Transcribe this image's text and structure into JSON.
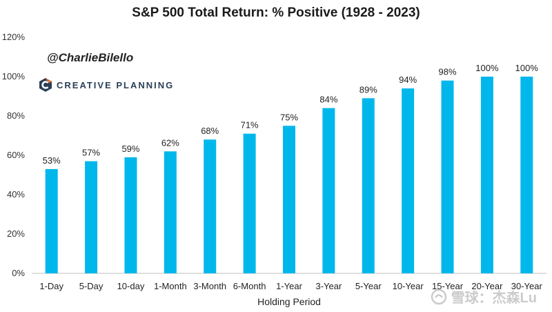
{
  "chart_data": {
    "type": "bar",
    "title": "S&P 500 Total Return: % Positive (1928 - 2023)",
    "xlabel": "Holding Period",
    "ylabel": "",
    "categories": [
      "1-Day",
      "5-Day",
      "10-day",
      "1-Month",
      "3-Month",
      "6-Month",
      "1-Year",
      "3-Year",
      "5-Year",
      "10-Year",
      "15-Year",
      "20-Year",
      "30-Year"
    ],
    "values": [
      53,
      57,
      59,
      62,
      68,
      71,
      75,
      84,
      89,
      94,
      98,
      100,
      100
    ],
    "data_labels": [
      "53%",
      "57%",
      "59%",
      "62%",
      "68%",
      "71%",
      "75%",
      "84%",
      "89%",
      "94%",
      "98%",
      "100%",
      "100%"
    ],
    "ylim": [
      0,
      120
    ],
    "yticks": [
      0,
      20,
      40,
      60,
      80,
      100,
      120
    ],
    "ytick_labels": [
      "0%",
      "20%",
      "40%",
      "60%",
      "80%",
      "100%",
      "120%"
    ],
    "grid": false,
    "bar_color": "#00B7EB"
  },
  "annotations": {
    "handle": "@CharlieBilello",
    "brand": "CREATIVE PLANNING",
    "watermark": "雪球：杰森Lu"
  }
}
